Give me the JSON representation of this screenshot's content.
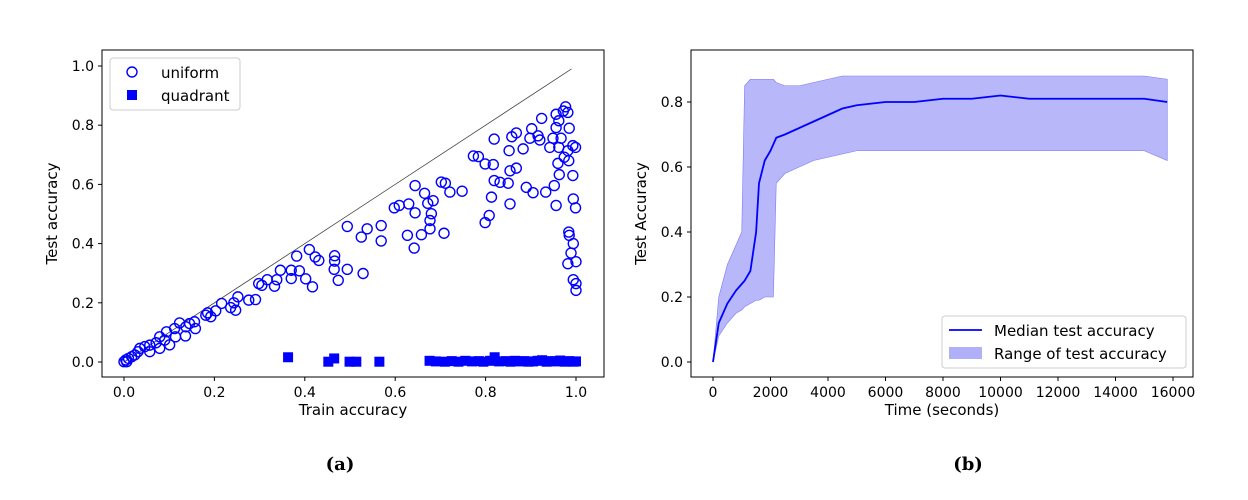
{
  "chart_data": [
    {
      "type": "scatter",
      "caption": "(a)",
      "xlabel": "Train accuracy",
      "ylabel": "Test accuracy",
      "xlim": [
        -0.05,
        1.06
      ],
      "ylim": [
        -0.05,
        1.05
      ],
      "xticks": [
        "0.0",
        "0.2",
        "0.4",
        "0.6",
        "0.8",
        "1.0"
      ],
      "yticks": [
        "0.0",
        "0.2",
        "0.4",
        "0.6",
        "0.8",
        "1.0"
      ],
      "reference_line": {
        "from": [
          0,
          0
        ],
        "to": [
          0.99,
          0.99
        ],
        "color": "#444444"
      },
      "legend": {
        "placement": "top-left",
        "entries": [
          "uniform",
          "quadrant"
        ]
      },
      "series": [
        {
          "name": "uniform",
          "marker": "open-circle",
          "color": "#0000ff",
          "points": [
            [
              0.977,
              0.862
            ],
            [
              0.924,
              0.823
            ],
            [
              0.902,
              0.788
            ],
            [
              0.868,
              0.774
            ],
            [
              0.858,
              0.761
            ],
            [
              0.819,
              0.753
            ],
            [
              0.852,
              0.714
            ],
            [
              0.883,
              0.72
            ],
            [
              0.773,
              0.696
            ],
            [
              0.784,
              0.694
            ],
            [
              0.799,
              0.669
            ],
            [
              0.817,
              0.667
            ],
            [
              0.868,
              0.655
            ],
            [
              0.854,
              0.646
            ],
            [
              0.819,
              0.613
            ],
            [
              0.832,
              0.607
            ],
            [
              0.85,
              0.604
            ],
            [
              0.89,
              0.59
            ],
            [
              0.905,
              0.572
            ],
            [
              0.933,
              0.574
            ],
            [
              0.952,
              0.596
            ],
            [
              0.963,
              0.633
            ],
            [
              0.956,
              0.529
            ],
            [
              0.994,
              0.551
            ],
            [
              0.999,
              0.521
            ],
            [
              0.993,
              0.63
            ],
            [
              0.984,
              0.439
            ],
            [
              0.985,
              0.428
            ],
            [
              0.994,
              0.4
            ],
            [
              0.989,
              0.368
            ],
            [
              0.982,
              0.332
            ],
            [
              1.0,
              0.339
            ],
            [
              0.994,
              0.278
            ],
            [
              1.0,
              0.265
            ],
            [
              1.0,
              0.242
            ],
            [
              0.808,
              0.495
            ],
            [
              0.799,
              0.471
            ],
            [
              0.854,
              0.534
            ],
            [
              0.813,
              0.557
            ],
            [
              0.702,
              0.608
            ],
            [
              0.711,
              0.604
            ],
            [
              0.721,
              0.574
            ],
            [
              0.748,
              0.577
            ],
            [
              0.644,
              0.596
            ],
            [
              0.665,
              0.57
            ],
            [
              0.672,
              0.536
            ],
            [
              0.684,
              0.545
            ],
            [
              0.63,
              0.534
            ],
            [
              0.609,
              0.529
            ],
            [
              0.598,
              0.521
            ],
            [
              0.644,
              0.504
            ],
            [
              0.68,
              0.501
            ],
            [
              0.677,
              0.478
            ],
            [
              0.677,
              0.45
            ],
            [
              0.708,
              0.435
            ],
            [
              0.658,
              0.43
            ],
            [
              0.627,
              0.428
            ],
            [
              0.642,
              0.385
            ],
            [
              0.569,
              0.461
            ],
            [
              0.569,
              0.409
            ],
            [
              0.538,
              0.45
            ],
            [
              0.525,
              0.422
            ],
            [
              0.494,
              0.458
            ],
            [
              0.41,
              0.38
            ],
            [
              0.423,
              0.355
            ],
            [
              0.431,
              0.343
            ],
            [
              0.382,
              0.358
            ],
            [
              0.466,
              0.359
            ],
            [
              0.466,
              0.341
            ],
            [
              0.465,
              0.313
            ],
            [
              0.494,
              0.313
            ],
            [
              0.474,
              0.276
            ],
            [
              0.529,
              0.299
            ],
            [
              0.346,
              0.31
            ],
            [
              0.37,
              0.31
            ],
            [
              0.388,
              0.308
            ],
            [
              0.37,
              0.282
            ],
            [
              0.402,
              0.281
            ],
            [
              0.417,
              0.254
            ],
            [
              0.317,
              0.278
            ],
            [
              0.338,
              0.278
            ],
            [
              0.298,
              0.265
            ],
            [
              0.305,
              0.259
            ],
            [
              0.333,
              0.256
            ],
            [
              0.252,
              0.22
            ],
            [
              0.243,
              0.2
            ],
            [
              0.216,
              0.198
            ],
            [
              0.236,
              0.184
            ],
            [
              0.247,
              0.175
            ],
            [
              0.276,
              0.209
            ],
            [
              0.291,
              0.211
            ],
            [
              0.203,
              0.173
            ],
            [
              0.185,
              0.166
            ],
            [
              0.192,
              0.153
            ],
            [
              0.181,
              0.158
            ],
            [
              0.156,
              0.136
            ],
            [
              0.145,
              0.13
            ],
            [
              0.123,
              0.132
            ],
            [
              0.158,
              0.113
            ],
            [
              0.137,
              0.119
            ],
            [
              0.112,
              0.113
            ],
            [
              0.094,
              0.102
            ],
            [
              0.136,
              0.088
            ],
            [
              0.114,
              0.085
            ],
            [
              0.079,
              0.085
            ],
            [
              0.09,
              0.074
            ],
            [
              0.101,
              0.058
            ],
            [
              0.071,
              0.065
            ],
            [
              0.079,
              0.046
            ],
            [
              0.057,
              0.057
            ],
            [
              0.046,
              0.052
            ],
            [
              0.035,
              0.046
            ],
            [
              0.057,
              0.035
            ],
            [
              0.031,
              0.035
            ],
            [
              0.024,
              0.024
            ],
            [
              0.017,
              0.018
            ],
            [
              0.01,
              0.012
            ],
            [
              0.004,
              0.007
            ],
            [
              0.0,
              0.001
            ],
            [
              0.006,
              0.001
            ],
            [
              0.956,
              0.837
            ],
            [
              0.962,
              0.815
            ],
            [
              0.972,
              0.848
            ],
            [
              0.982,
              0.843
            ],
            [
              0.956,
              0.792
            ],
            [
              0.949,
              0.756
            ],
            [
              0.967,
              0.756
            ],
            [
              0.985,
              0.79
            ],
            [
              0.942,
              0.725
            ],
            [
              0.962,
              0.725
            ],
            [
              0.982,
              0.714
            ],
            [
              0.993,
              0.731
            ],
            [
              0.999,
              0.725
            ],
            [
              0.984,
              0.68
            ],
            [
              0.96,
              0.671
            ],
            [
              0.916,
              0.764
            ],
            [
              0.92,
              0.75
            ],
            [
              0.898,
              0.756
            ],
            [
              0.974,
              0.692
            ]
          ]
        },
        {
          "name": "quadrant",
          "marker": "filled-square",
          "color": "#0000ff",
          "points": [
            [
              0.363,
              0.016
            ],
            [
              0.452,
              0.001
            ],
            [
              0.465,
              0.012
            ],
            [
              0.499,
              0.001
            ],
            [
              0.514,
              0.001
            ],
            [
              0.565,
              0.001
            ],
            [
              0.676,
              0.004
            ],
            [
              0.69,
              0.002
            ],
            [
              0.71,
              0.001
            ],
            [
              0.725,
              0.003
            ],
            [
              0.74,
              0.001
            ],
            [
              0.755,
              0.004
            ],
            [
              0.77,
              0.002
            ],
            [
              0.785,
              0.003
            ],
            [
              0.795,
              0.001
            ],
            [
              0.81,
              0.004
            ],
            [
              0.82,
              0.016
            ],
            [
              0.83,
              0.002
            ],
            [
              0.845,
              0.003
            ],
            [
              0.855,
              0.001
            ],
            [
              0.865,
              0.004
            ],
            [
              0.875,
              0.002
            ],
            [
              0.885,
              0.003
            ],
            [
              0.895,
              0.001
            ],
            [
              0.905,
              0.002
            ],
            [
              0.915,
              0.004
            ],
            [
              0.925,
              0.006
            ],
            [
              0.935,
              0.001
            ],
            [
              0.945,
              0.003
            ],
            [
              0.955,
              0.002
            ],
            [
              0.965,
              0.005
            ],
            [
              0.975,
              0.001
            ],
            [
              0.985,
              0.003
            ],
            [
              0.995,
              0.001
            ],
            [
              1.0,
              0.002
            ]
          ]
        }
      ]
    },
    {
      "type": "line",
      "caption": "(b)",
      "xlabel": "Time (seconds)",
      "ylabel": "Test Accuracy",
      "xlim": [
        -1000,
        16800
      ],
      "ylim": [
        -0.05,
        0.93
      ],
      "xticks": [
        "0",
        "2000",
        "4000",
        "6000",
        "8000",
        "10000",
        "12000",
        "14000",
        "16000"
      ],
      "yticks": [
        "0.0",
        "0.2",
        "0.4",
        "0.6",
        "0.8"
      ],
      "legend": {
        "placement": "bottom-right",
        "entries": [
          "Median test accuracy",
          "Range of test accuracy"
        ]
      },
      "colors": {
        "median": "#0000ff",
        "range": "#7b7bf5"
      },
      "x": [
        0,
        200,
        500,
        800,
        1000,
        1100,
        1300,
        1500,
        1600,
        1800,
        2000,
        2100,
        2200,
        2500,
        3000,
        3500,
        4000,
        4500,
        5000,
        6000,
        7000,
        8000,
        9000,
        10000,
        11000,
        12000,
        13000,
        14000,
        15000,
        15800
      ],
      "median": [
        0,
        0.12,
        0.18,
        0.22,
        0.24,
        0.25,
        0.28,
        0.4,
        0.55,
        0.62,
        0.65,
        0.67,
        0.69,
        0.7,
        0.72,
        0.74,
        0.76,
        0.78,
        0.79,
        0.8,
        0.8,
        0.81,
        0.81,
        0.82,
        0.81,
        0.81,
        0.81,
        0.81,
        0.81,
        0.8
      ],
      "upper": [
        0,
        0.2,
        0.3,
        0.36,
        0.4,
        0.85,
        0.87,
        0.87,
        0.87,
        0.87,
        0.87,
        0.87,
        0.86,
        0.85,
        0.85,
        0.86,
        0.87,
        0.88,
        0.88,
        0.88,
        0.88,
        0.88,
        0.88,
        0.88,
        0.88,
        0.88,
        0.88,
        0.88,
        0.88,
        0.87
      ],
      "lower": [
        0,
        0.08,
        0.12,
        0.15,
        0.16,
        0.17,
        0.18,
        0.19,
        0.19,
        0.2,
        0.2,
        0.2,
        0.55,
        0.58,
        0.6,
        0.62,
        0.63,
        0.64,
        0.65,
        0.65,
        0.65,
        0.65,
        0.65,
        0.65,
        0.65,
        0.65,
        0.65,
        0.65,
        0.65,
        0.62
      ]
    }
  ]
}
